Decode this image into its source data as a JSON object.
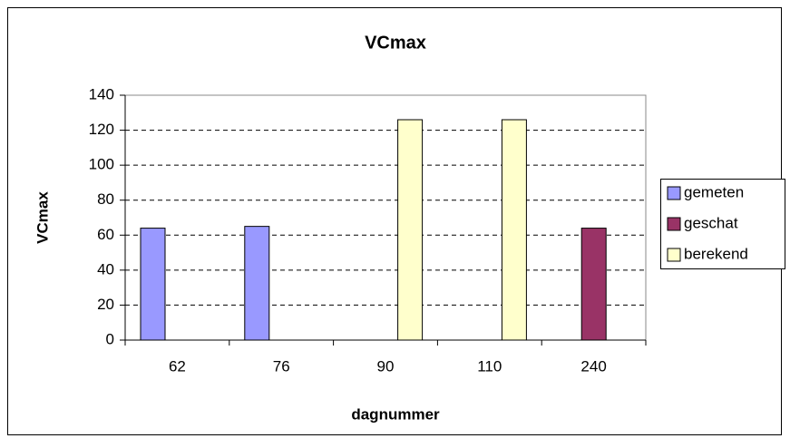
{
  "chart_data": {
    "type": "bar",
    "title": "VCmax",
    "x_label": "dagnummer",
    "y_label": "VCmax",
    "categories": [
      "62",
      "76",
      "90",
      "110",
      "240"
    ],
    "series": [
      {
        "name": "gemeten",
        "color": "#9999ff",
        "values": [
          64,
          65,
          null,
          null,
          null
        ]
      },
      {
        "name": "geschat",
        "color": "#993366",
        "values": [
          null,
          null,
          null,
          null,
          64
        ]
      },
      {
        "name": "berekend",
        "color": "#ffffcc",
        "values": [
          null,
          null,
          126,
          126,
          null
        ]
      }
    ],
    "ylim": [
      0,
      140
    ],
    "yticks": [
      0,
      20,
      40,
      60,
      80,
      100,
      120,
      140
    ],
    "grid": true,
    "legend": "right"
  }
}
